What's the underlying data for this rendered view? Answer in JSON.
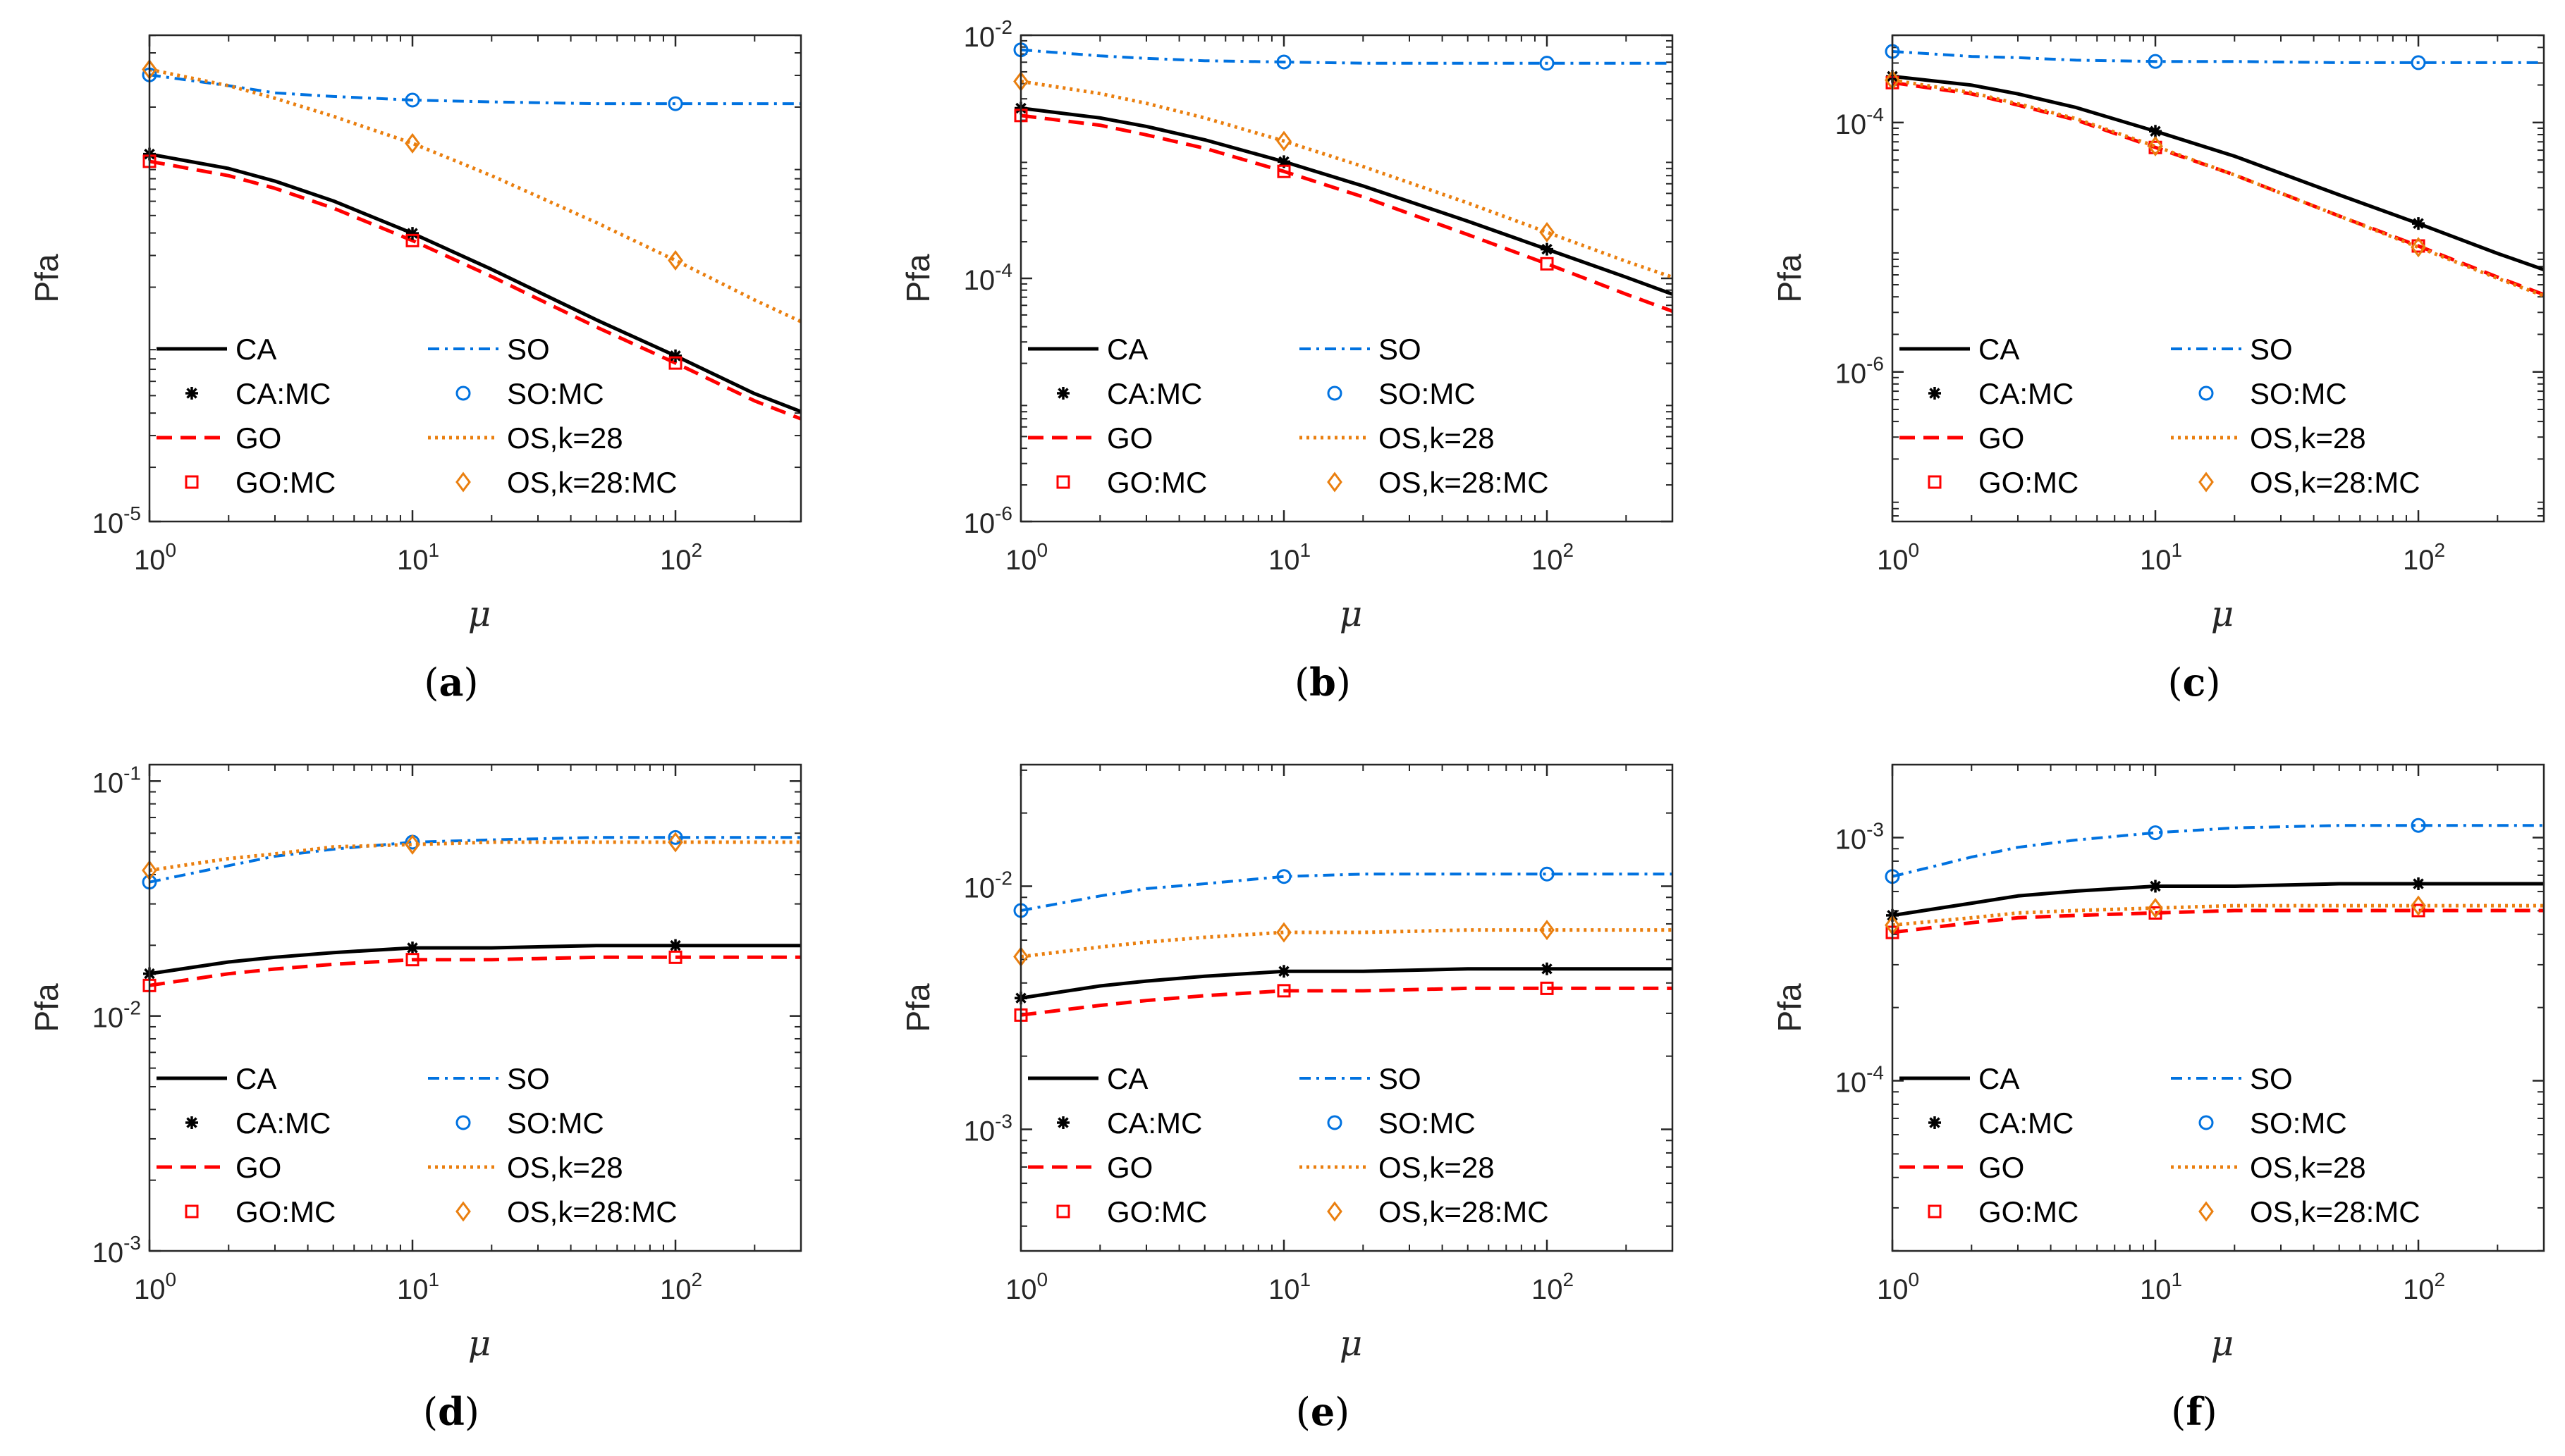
{
  "colors": {
    "CA": "#000000",
    "GO": "#ff0000",
    "SO": "#0072e0",
    "OS": "#ea7f0f",
    "axis": "#262626"
  },
  "legend_labels": [
    "CA",
    "CA:MC",
    "GO",
    "GO:MC",
    "SO",
    "SO:MC",
    "OS,k=28",
    "OS,k=28:MC"
  ],
  "chart_data": [
    {
      "panel": "(a)",
      "type": "line",
      "xscale": "log",
      "yscale": "log",
      "xlabel": "μ",
      "ylabel": "Pfa",
      "xlim": [
        1,
        300
      ],
      "ylim_exp": [
        -5,
        -2.3
      ],
      "xticks": [
        {
          "base": "10",
          "exp": "0"
        },
        {
          "base": "10",
          "exp": "1"
        },
        {
          "base": "10",
          "exp": "2"
        }
      ],
      "yticks": [
        {
          "exp": -5,
          "base": "10",
          "sup": "-5"
        }
      ],
      "legend": "lower-left",
      "x": [
        1,
        2,
        3,
        5,
        10,
        20,
        50,
        100,
        200,
        300
      ],
      "mc_x": [
        1,
        10,
        100
      ],
      "series": [
        {
          "name": "CA",
          "line_exp": [
            -2.96,
            -3.04,
            -3.11,
            -3.22,
            -3.4,
            -3.6,
            -3.88,
            -4.08,
            -4.29,
            -4.39
          ],
          "mc_name": "CA:MC",
          "mc_exp": [
            -2.96,
            -3.4,
            -4.08
          ],
          "marker": "star"
        },
        {
          "name": "GO",
          "line_exp": [
            -3.0,
            -3.08,
            -3.15,
            -3.26,
            -3.44,
            -3.64,
            -3.92,
            -4.12,
            -4.33,
            -4.43
          ],
          "mc_name": "GO:MC",
          "mc_exp": [
            -3.0,
            -3.44,
            -4.12
          ],
          "marker": "square"
        },
        {
          "name": "SO",
          "line_exp": [
            -2.52,
            -2.58,
            -2.62,
            -2.64,
            -2.66,
            -2.67,
            -2.68,
            -2.68,
            -2.68,
            -2.68
          ],
          "mc_name": "SO:MC",
          "mc_exp": [
            -2.52,
            -2.66,
            -2.68
          ],
          "marker": "circle"
        },
        {
          "name": "OS,k=28",
          "line_exp": [
            -2.49,
            -2.58,
            -2.65,
            -2.75,
            -2.9,
            -3.08,
            -3.34,
            -3.55,
            -3.77,
            -3.89
          ],
          "mc_name": "OS,k=28:MC",
          "mc_exp": [
            -2.49,
            -2.9,
            -3.55
          ],
          "marker": "diamond"
        }
      ]
    },
    {
      "panel": "(b)",
      "type": "line",
      "xscale": "log",
      "yscale": "log",
      "xlabel": "μ",
      "ylabel": "Pfa",
      "xlim": [
        1,
        300
      ],
      "ylim_exp": [
        -6,
        -2
      ],
      "xticks": [
        {
          "base": "10",
          "exp": "0"
        },
        {
          "base": "10",
          "exp": "1"
        },
        {
          "base": "10",
          "exp": "2"
        }
      ],
      "yticks": [
        {
          "exp": -6,
          "base": "10",
          "sup": "-6"
        },
        {
          "exp": -4,
          "base": "10",
          "sup": "-4"
        },
        {
          "exp": -2,
          "base": "10",
          "sup": "-2"
        }
      ],
      "legend": "lower-left",
      "x": [
        1,
        2,
        3,
        5,
        10,
        20,
        50,
        100,
        200,
        300
      ],
      "mc_x": [
        1,
        10,
        100
      ],
      "series": [
        {
          "name": "CA",
          "line_exp": [
            -2.6,
            -2.68,
            -2.75,
            -2.86,
            -3.04,
            -3.24,
            -3.53,
            -3.76,
            -3.99,
            -4.13
          ],
          "mc_name": "CA:MC",
          "mc_exp": [
            -2.6,
            -3.04,
            -3.76
          ],
          "marker": "star"
        },
        {
          "name": "GO",
          "line_exp": [
            -2.66,
            -2.74,
            -2.82,
            -2.93,
            -3.12,
            -3.33,
            -3.64,
            -3.88,
            -4.13,
            -4.27
          ],
          "mc_name": "GO:MC",
          "mc_exp": [
            -2.66,
            -3.12,
            -3.88
          ],
          "marker": "square"
        },
        {
          "name": "SO",
          "line_exp": [
            -2.12,
            -2.17,
            -2.19,
            -2.21,
            -2.22,
            -2.23,
            -2.23,
            -2.23,
            -2.23,
            -2.23
          ],
          "mc_name": "SO:MC",
          "mc_exp": [
            -2.12,
            -2.22,
            -2.23
          ],
          "marker": "circle"
        },
        {
          "name": "OS,k=28",
          "line_exp": [
            -2.38,
            -2.48,
            -2.56,
            -2.68,
            -2.87,
            -3.08,
            -3.38,
            -3.62,
            -3.86,
            -3.99
          ],
          "mc_name": "OS,k=28:MC",
          "mc_exp": [
            -2.38,
            -2.87,
            -3.62
          ],
          "marker": "diamond"
        }
      ]
    },
    {
      "panel": "(c)",
      "type": "line",
      "xscale": "log",
      "yscale": "log",
      "xlabel": "μ",
      "ylabel": "Pfa",
      "xlim": [
        1,
        300
      ],
      "ylim_exp": [
        -7.2,
        -3.3
      ],
      "xticks": [
        {
          "base": "10",
          "exp": "0"
        },
        {
          "base": "10",
          "exp": "1"
        },
        {
          "base": "10",
          "exp": "2"
        }
      ],
      "yticks": [
        {
          "exp": -6,
          "base": "10",
          "sup": "-6"
        },
        {
          "exp": -4,
          "base": "10",
          "sup": "-4"
        }
      ],
      "legend": "lower-left",
      "x": [
        1,
        2,
        3,
        5,
        10,
        20,
        50,
        100,
        200,
        300
      ],
      "mc_x": [
        1,
        10,
        100
      ],
      "series": [
        {
          "name": "CA",
          "line_exp": [
            -3.63,
            -3.7,
            -3.77,
            -3.88,
            -4.07,
            -4.27,
            -4.58,
            -4.81,
            -5.05,
            -5.18
          ],
          "mc_name": "CA:MC",
          "mc_exp": [
            -3.63,
            -4.07,
            -4.81
          ],
          "marker": "star"
        },
        {
          "name": "GO",
          "line_exp": [
            -3.68,
            -3.77,
            -3.86,
            -3.98,
            -4.2,
            -4.42,
            -4.75,
            -4.99,
            -5.24,
            -5.38
          ],
          "mc_name": "GO:MC",
          "mc_exp": [
            -3.68,
            -4.2,
            -4.99
          ],
          "marker": "square"
        },
        {
          "name": "SO",
          "line_exp": [
            -3.43,
            -3.47,
            -3.48,
            -3.5,
            -3.51,
            -3.51,
            -3.52,
            -3.52,
            -3.52,
            -3.52
          ],
          "mc_name": "SO:MC",
          "mc_exp": [
            -3.43,
            -3.51,
            -3.52
          ],
          "marker": "circle"
        },
        {
          "name": "OS,k=28",
          "line_exp": [
            -3.66,
            -3.76,
            -3.85,
            -3.97,
            -4.19,
            -4.42,
            -4.75,
            -5.0,
            -5.25,
            -5.39
          ],
          "mc_name": "OS,k=28:MC",
          "mc_exp": [
            -3.66,
            -4.19,
            -5.0
          ],
          "marker": "diamond"
        }
      ]
    },
    {
      "panel": "(d)",
      "type": "line",
      "xscale": "log",
      "yscale": "log",
      "xlabel": "μ",
      "ylabel": "Pfa",
      "xlim": [
        1,
        300
      ],
      "ylim_exp": [
        -3,
        -0.93
      ],
      "xticks": [
        {
          "base": "10",
          "exp": "0"
        },
        {
          "base": "10",
          "exp": "1"
        },
        {
          "base": "10",
          "exp": "2"
        }
      ],
      "yticks": [
        {
          "exp": -3,
          "base": "10",
          "sup": "-3"
        },
        {
          "exp": -2,
          "base": "10",
          "sup": "-2"
        },
        {
          "exp": -1,
          "base": "10",
          "sup": "-1"
        }
      ],
      "legend": "lower-left",
      "x": [
        1,
        2,
        3,
        5,
        10,
        20,
        50,
        100,
        200,
        300
      ],
      "mc_x": [
        1,
        10,
        100
      ],
      "series": [
        {
          "name": "CA",
          "line_exp": [
            -1.82,
            -1.77,
            -1.75,
            -1.73,
            -1.71,
            -1.71,
            -1.7,
            -1.7,
            -1.7,
            -1.7
          ],
          "mc_name": "CA:MC",
          "mc_exp": [
            -1.82,
            -1.71,
            -1.7
          ],
          "marker": "star"
        },
        {
          "name": "GO",
          "line_exp": [
            -1.87,
            -1.82,
            -1.8,
            -1.78,
            -1.76,
            -1.76,
            -1.75,
            -1.75,
            -1.75,
            -1.75
          ],
          "mc_name": "GO:MC",
          "mc_exp": [
            -1.87,
            -1.76,
            -1.75
          ],
          "marker": "square"
        },
        {
          "name": "SO",
          "line_exp": [
            -1.43,
            -1.36,
            -1.32,
            -1.29,
            -1.26,
            -1.25,
            -1.24,
            -1.24,
            -1.24,
            -1.24
          ],
          "mc_name": "SO:MC",
          "mc_exp": [
            -1.43,
            -1.26,
            -1.24
          ],
          "marker": "circle"
        },
        {
          "name": "OS,k=28",
          "line_exp": [
            -1.38,
            -1.33,
            -1.31,
            -1.28,
            -1.27,
            -1.26,
            -1.26,
            -1.26,
            -1.26,
            -1.26
          ],
          "mc_name": "OS,k=28:MC",
          "mc_exp": [
            -1.38,
            -1.27,
            -1.26
          ],
          "marker": "diamond"
        }
      ]
    },
    {
      "panel": "(e)",
      "type": "line",
      "xscale": "log",
      "yscale": "log",
      "xlabel": "μ",
      "ylabel": "Pfa",
      "xlim": [
        1,
        300
      ],
      "ylim_exp": [
        -3.5,
        -1.5
      ],
      "xticks": [
        {
          "base": "10",
          "exp": "0"
        },
        {
          "base": "10",
          "exp": "1"
        },
        {
          "base": "10",
          "exp": "2"
        }
      ],
      "yticks": [
        {
          "exp": -3,
          "base": "10",
          "sup": "-3"
        },
        {
          "exp": -2,
          "base": "10",
          "sup": "-2"
        }
      ],
      "legend": "lower-left",
      "x": [
        1,
        2,
        3,
        5,
        10,
        20,
        50,
        100,
        200,
        300
      ],
      "mc_x": [
        1,
        10,
        100
      ],
      "series": [
        {
          "name": "CA",
          "line_exp": [
            -2.46,
            -2.41,
            -2.39,
            -2.37,
            -2.35,
            -2.35,
            -2.34,
            -2.34,
            -2.34,
            -2.34
          ],
          "mc_name": "CA:MC",
          "mc_exp": [
            -2.46,
            -2.35,
            -2.34
          ],
          "marker": "star"
        },
        {
          "name": "GO",
          "line_exp": [
            -2.53,
            -2.49,
            -2.47,
            -2.45,
            -2.43,
            -2.43,
            -2.42,
            -2.42,
            -2.42,
            -2.42
          ],
          "mc_name": "GO:MC",
          "mc_exp": [
            -2.53,
            -2.43,
            -2.42
          ],
          "marker": "square"
        },
        {
          "name": "SO",
          "line_exp": [
            -2.1,
            -2.04,
            -2.01,
            -1.99,
            -1.96,
            -1.95,
            -1.95,
            -1.95,
            -1.95,
            -1.95
          ],
          "mc_name": "SO:MC",
          "mc_exp": [
            -2.1,
            -1.96,
            -1.95
          ],
          "marker": "circle"
        },
        {
          "name": "OS,k=28",
          "line_exp": [
            -2.29,
            -2.25,
            -2.23,
            -2.21,
            -2.19,
            -2.19,
            -2.18,
            -2.18,
            -2.18,
            -2.18
          ],
          "mc_name": "OS,k=28:MC",
          "mc_exp": [
            -2.29,
            -2.19,
            -2.18
          ],
          "marker": "diamond"
        }
      ]
    },
    {
      "panel": "(f)",
      "type": "line",
      "xscale": "log",
      "yscale": "log",
      "xlabel": "μ",
      "ylabel": "Pfa",
      "xlim": [
        1,
        300
      ],
      "ylim_exp": [
        -4.7,
        -2.7
      ],
      "xticks": [
        {
          "base": "10",
          "exp": "0"
        },
        {
          "base": "10",
          "exp": "1"
        },
        {
          "base": "10",
          "exp": "2"
        }
      ],
      "yticks": [
        {
          "exp": -4,
          "base": "10",
          "sup": "-4"
        },
        {
          "exp": -3,
          "base": "10",
          "sup": "-3"
        }
      ],
      "legend": "lower-left",
      "x": [
        1,
        2,
        3,
        5,
        10,
        20,
        50,
        100,
        200,
        300
      ],
      "mc_x": [
        1,
        10,
        100
      ],
      "series": [
        {
          "name": "CA",
          "line_exp": [
            -3.32,
            -3.27,
            -3.24,
            -3.22,
            -3.2,
            -3.2,
            -3.19,
            -3.19,
            -3.19,
            -3.19
          ],
          "mc_name": "CA:MC",
          "mc_exp": [
            -3.32,
            -3.2,
            -3.19
          ],
          "marker": "star"
        },
        {
          "name": "GO",
          "line_exp": [
            -3.39,
            -3.35,
            -3.33,
            -3.32,
            -3.31,
            -3.3,
            -3.3,
            -3.3,
            -3.3,
            -3.3
          ],
          "mc_name": "GO:MC",
          "mc_exp": [
            -3.39,
            -3.31,
            -3.3
          ],
          "marker": "square"
        },
        {
          "name": "SO",
          "line_exp": [
            -3.16,
            -3.08,
            -3.04,
            -3.01,
            -2.98,
            -2.96,
            -2.95,
            -2.95,
            -2.95,
            -2.95
          ],
          "mc_name": "SO:MC",
          "mc_exp": [
            -3.16,
            -2.98,
            -2.95
          ],
          "marker": "circle"
        },
        {
          "name": "OS,k=28",
          "line_exp": [
            -3.36,
            -3.33,
            -3.31,
            -3.3,
            -3.29,
            -3.28,
            -3.28,
            -3.28,
            -3.28,
            -3.28
          ],
          "mc_name": "OS,k=28:MC",
          "mc_exp": [
            -3.36,
            -3.29,
            -3.28
          ],
          "marker": "diamond"
        }
      ]
    }
  ]
}
